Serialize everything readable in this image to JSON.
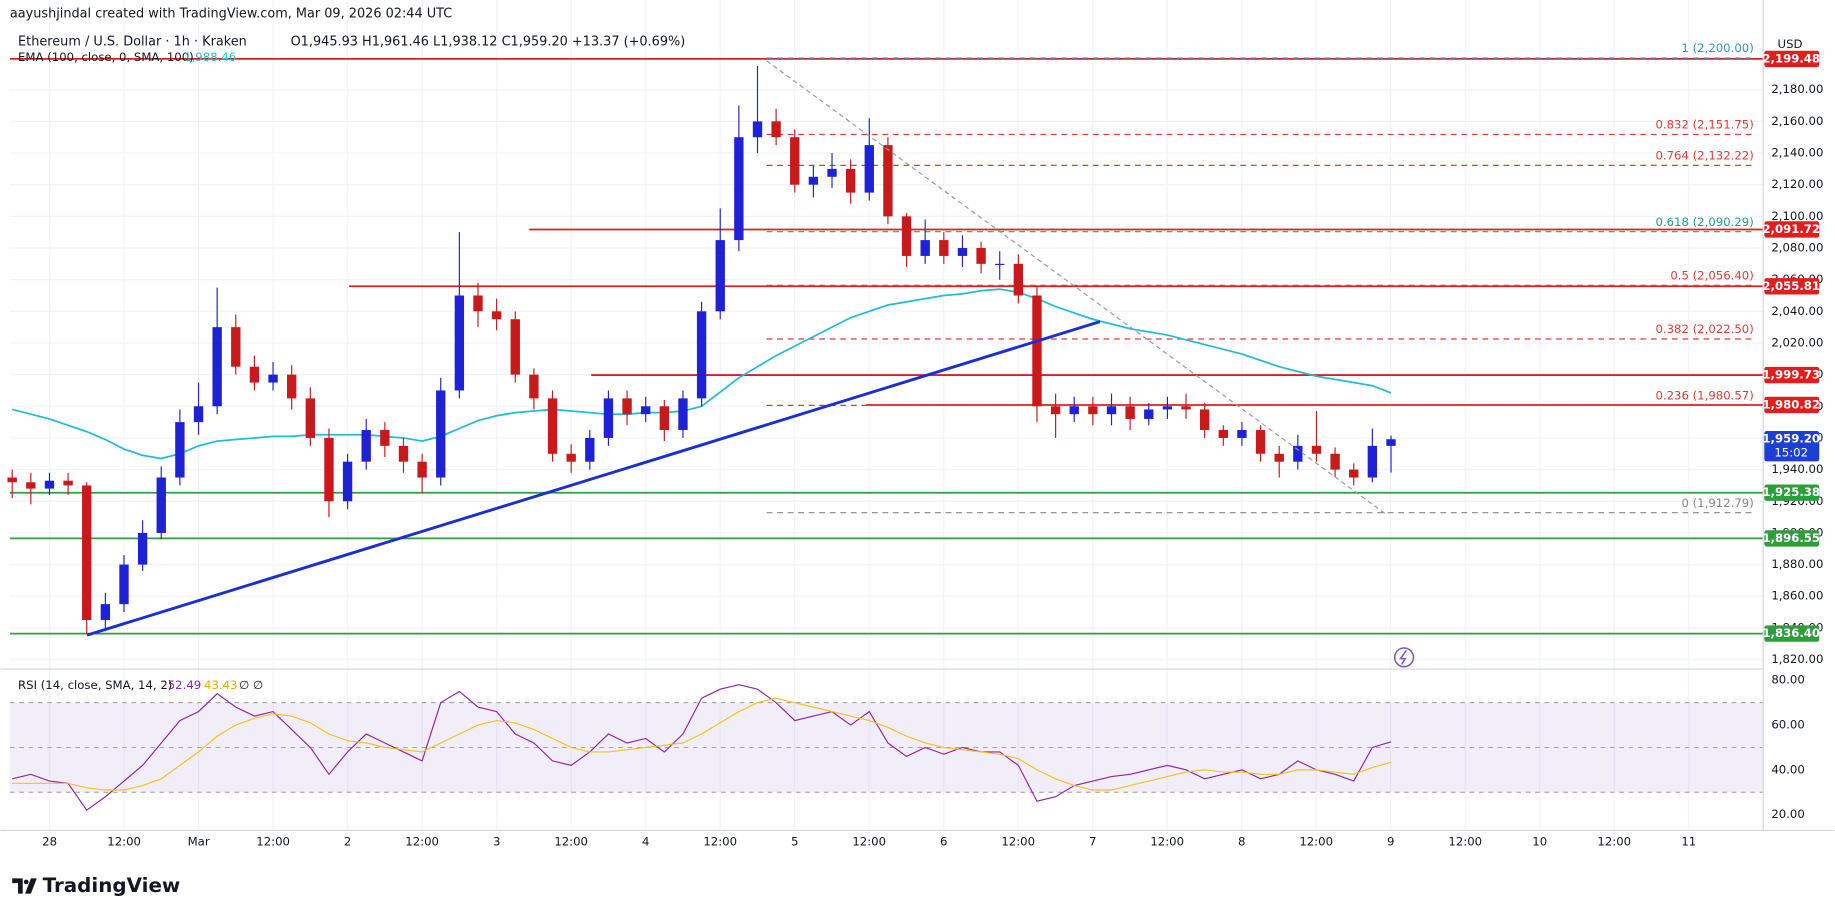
{
  "header": {
    "credit": "aayushjindal created with TradingView.com, Mar 09, 2026 02:44 UTC",
    "symbol": "Ethereum / U.S. Dollar · 1h · Kraken",
    "ohlc": "O1,945.93 H1,961.46 L1,938.12 C1,959.20 +13.37 (+0.69%)",
    "ema_title": "EMA (100, close, 0, SMA, 100)",
    "ema_value": "1,988.46",
    "currency": "USD",
    "logo": "TradingView"
  },
  "chart_data": {
    "type": "candlestick",
    "up_color": "#1f22d4",
    "down_color": "#c8191b",
    "ema_color": "#21bcd6",
    "ylim": [
      1814,
      2216
    ],
    "yticks": [
      {
        "value": 2180,
        "label": "2,180.00"
      },
      {
        "value": 2160,
        "label": "2,160.00"
      },
      {
        "value": 2140,
        "label": "2,140.00"
      },
      {
        "value": 2120,
        "label": "2,120.00"
      },
      {
        "value": 2100,
        "label": "2,100.00"
      },
      {
        "value": 2080,
        "label": "2,080.00"
      },
      {
        "value": 2060,
        "label": "2,060.00"
      },
      {
        "value": 2040,
        "label": "2,040.00"
      },
      {
        "value": 2020,
        "label": "2,020.00"
      },
      {
        "value": 2000,
        "label": "2,000.00"
      },
      {
        "value": 1980,
        "label": "1,980.00"
      },
      {
        "value": 1960,
        "label": "1,960.00"
      },
      {
        "value": 1940,
        "label": "1,940.00"
      },
      {
        "value": 1920,
        "label": "1,920.00"
      },
      {
        "value": 1900,
        "label": "1,900.00"
      },
      {
        "value": 1880,
        "label": "1,880.00"
      },
      {
        "value": 1860,
        "label": "1,860.00"
      },
      {
        "value": 1840,
        "label": "1,840.00"
      },
      {
        "value": 1820,
        "label": "1,820.00"
      }
    ],
    "xticks": [
      "28",
      "12:00",
      "Mar",
      "12:00",
      "2",
      "12:00",
      "3",
      "12:00",
      "4",
      "12:00",
      "5",
      "12:00",
      "6",
      "12:00",
      "7",
      "12:00",
      "8",
      "12:00",
      "9",
      "12:00",
      "10",
      "12:00",
      "11"
    ],
    "open": [
      1935,
      1932,
      1928,
      1933,
      1930,
      1845,
      1855,
      1880,
      1900,
      1935,
      1970,
      1980,
      2030,
      2005,
      1995,
      2000,
      1985,
      1960,
      1920,
      1945,
      1965,
      1955,
      1945,
      1935,
      1990,
      2050,
      2040,
      2035,
      2000,
      1985,
      1950,
      1945,
      1960,
      1985,
      1975,
      1980,
      1965,
      1985,
      2040,
      2085,
      2150,
      2160,
      2150,
      2120,
      2125,
      2130,
      2115,
      2145,
      2100,
      2075,
      2085,
      2075,
      2080,
      2070,
      2070,
      2050,
      1980,
      1975,
      1980,
      1975,
      1980,
      1972,
      1978,
      1980,
      1978,
      1965,
      1960,
      1965,
      1950,
      1945,
      1955,
      1950,
      1940,
      1935,
      1955
    ],
    "high": [
      1940,
      1938,
      1938,
      1938,
      1932,
      1862,
      1886,
      1908,
      1942,
      1978,
      1995,
      2055,
      2038,
      2012,
      2008,
      2006,
      1992,
      1966,
      1950,
      1972,
      1970,
      1960,
      1950,
      1998,
      2090,
      2058,
      2048,
      2040,
      2004,
      1990,
      1956,
      1965,
      1990,
      1990,
      1986,
      1984,
      1990,
      2046,
      2105,
      2170,
      2195,
      2168,
      2155,
      2132,
      2140,
      2136,
      2162,
      2150,
      2102,
      2098,
      2090,
      2088,
      2084,
      2078,
      2076,
      2056,
      1988,
      1986,
      1986,
      1988,
      1986,
      1982,
      1986,
      1988,
      1982,
      1968,
      1970,
      1968,
      1955,
      1962,
      1977,
      1954,
      1944,
      1966,
      1961.46
    ],
    "low": [
      1922,
      1918,
      1924,
      1924,
      1836,
      1838,
      1850,
      1876,
      1896,
      1930,
      1962,
      1975,
      2000,
      1990,
      1990,
      1978,
      1955,
      1910,
      1915,
      1940,
      1948,
      1938,
      1925,
      1930,
      1985,
      2030,
      2028,
      1995,
      1978,
      1945,
      1938,
      1940,
      1955,
      1968,
      1970,
      1958,
      1960,
      1980,
      2035,
      2078,
      2140,
      2145,
      2115,
      2112,
      2118,
      2108,
      2110,
      2095,
      2068,
      2070,
      2070,
      2068,
      2064,
      2060,
      2045,
      1970,
      1960,
      1970,
      1968,
      1968,
      1965,
      1968,
      1972,
      1972,
      1960,
      1955,
      1955,
      1945,
      1935,
      1940,
      1945,
      1935,
      1930,
      1932,
      1938.12
    ],
    "close": [
      1932,
      1928,
      1933,
      1930,
      1845,
      1855,
      1880,
      1900,
      1935,
      1970,
      1980,
      2030,
      2005,
      1995,
      2000,
      1985,
      1960,
      1920,
      1945,
      1965,
      1955,
      1945,
      1935,
      1990,
      2050,
      2040,
      2035,
      2000,
      1985,
      1950,
      1945,
      1960,
      1985,
      1975,
      1980,
      1965,
      1985,
      2040,
      2085,
      2150,
      2160,
      2150,
      2120,
      2125,
      2130,
      2115,
      2145,
      2100,
      2075,
      2085,
      2075,
      2080,
      2070,
      2070,
      2050,
      1980,
      1975,
      1980,
      1975,
      1980,
      1972,
      1978,
      1980,
      1978,
      1965,
      1960,
      1965,
      1950,
      1945,
      1955,
      1950,
      1940,
      1935,
      1955,
      1959.2
    ],
    "ema": [
      1978,
      1975,
      1972,
      1968,
      1964,
      1959,
      1953,
      1949,
      1947,
      1950,
      1955,
      1958,
      1959,
      1960,
      1961,
      1961,
      1962,
      1962,
      1962,
      1962,
      1961,
      1960,
      1958,
      1961,
      1966,
      1971,
      1974,
      1976,
      1977,
      1978,
      1977,
      1976,
      1975,
      1975,
      1976,
      1976,
      1977,
      1980,
      1989,
      1998,
      2005,
      2012,
      2018,
      2024,
      2030,
      2036,
      2040,
      2044,
      2046,
      2048,
      2050,
      2051,
      2053,
      2054,
      2052,
      2048,
      2043,
      2039,
      2035,
      2032,
      2029,
      2027,
      2025,
      2022,
      2019,
      2016,
      2013,
      2009,
      2005,
      2002,
      1999,
      1997,
      1995,
      1993,
      1988.46
    ],
    "levels": [
      {
        "value": 2199.48,
        "label": "2,199.48",
        "color": "#e01e1e"
      },
      {
        "value": 2091.72,
        "label": "2,091.72",
        "color": "#e01e1e"
      },
      {
        "value": 2055.81,
        "label": "2,055.81",
        "color": "#e01e1e"
      },
      {
        "value": 1999.73,
        "label": "1,999.73",
        "color": "#e01e1e"
      },
      {
        "value": 1980.82,
        "label": "1,980.82",
        "color": "#e01e1e"
      },
      {
        "value": 1925.38,
        "label": "1,925.38",
        "color": "#2e9e3a"
      },
      {
        "value": 1896.55,
        "label": "1,896.55",
        "color": "#2e9e3a"
      },
      {
        "value": 1836.4,
        "label": "1,836.40",
        "color": "#2e9e3a"
      }
    ],
    "fib": [
      {
        "value": 2200,
        "label": "1 (2,200.00)",
        "color": "#2f8fdd"
      },
      {
        "value": 2151.75,
        "label": "0.832 (2,151.75)",
        "color": "#e53935"
      },
      {
        "value": 2132.22,
        "label": "0.764 (2,132.22)",
        "color": "#e53935"
      },
      {
        "value": 2090.29,
        "label": "0.618 (2,090.29)",
        "color": "#1aa386"
      },
      {
        "value": 2056.4,
        "label": "0.5 (2,056.40)",
        "color": "#e53935"
      },
      {
        "value": 2022.5,
        "label": "0.382 (2,022.50)",
        "color": "#e53935"
      },
      {
        "value": 1980.57,
        "label": "0.236 (1,980.57)",
        "color": "#e53935"
      },
      {
        "value": 1912.79,
        "label": "0 (1,912.79)",
        "color": "#888888"
      }
    ],
    "last_price": {
      "value": 1959.2,
      "label": "1,959.20"
    },
    "countdown": "15:02"
  },
  "rsi_data": {
    "type": "line",
    "title": "RSI (14, close, SMA, 14, 2)",
    "value_label": "52.49",
    "sma_label": "43.43",
    "extra": "∅ ∅",
    "ylim": [
      14,
      85
    ],
    "yticks": [
      {
        "value": 80,
        "label": "80.00"
      },
      {
        "value": 60,
        "label": "60.00"
      },
      {
        "value": 40,
        "label": "40.00"
      },
      {
        "value": 20,
        "label": "20.00"
      }
    ],
    "band": [
      30,
      70
    ],
    "mid": 50,
    "series": [
      {
        "name": "RSI",
        "color": "#8e24aa",
        "values": [
          36,
          38,
          35,
          34,
          22,
          28,
          35,
          42,
          52,
          62,
          66,
          74,
          68,
          64,
          66,
          58,
          50,
          38,
          48,
          56,
          52,
          48,
          44,
          70,
          75,
          68,
          66,
          56,
          52,
          44,
          42,
          48,
          56,
          52,
          54,
          48,
          56,
          72,
          76,
          78,
          76,
          70,
          62,
          64,
          66,
          60,
          66,
          52,
          46,
          50,
          47,
          50,
          48,
          48,
          42,
          26,
          28,
          33,
          35,
          37,
          38,
          40,
          42,
          40,
          36,
          38,
          40,
          36,
          38,
          44,
          40,
          38,
          35,
          50,
          52.49
        ]
      },
      {
        "name": "RSI-based MA",
        "color": "#f2c318",
        "values": [
          34,
          34,
          34,
          34,
          32,
          31,
          31,
          33,
          36,
          42,
          48,
          55,
          60,
          63,
          65,
          64,
          61,
          56,
          53,
          52,
          50,
          49,
          48,
          52,
          56,
          60,
          62,
          61,
          58,
          54,
          50,
          48,
          48,
          49,
          50,
          51,
          52,
          56,
          61,
          66,
          70,
          72,
          70,
          68,
          66,
          64,
          62,
          59,
          55,
          52,
          50,
          49,
          48,
          47,
          45,
          40,
          36,
          33,
          31,
          31,
          33,
          35,
          37,
          39,
          40,
          39,
          39,
          38,
          38,
          40,
          40,
          39,
          38,
          41,
          43.43
        ]
      }
    ]
  }
}
